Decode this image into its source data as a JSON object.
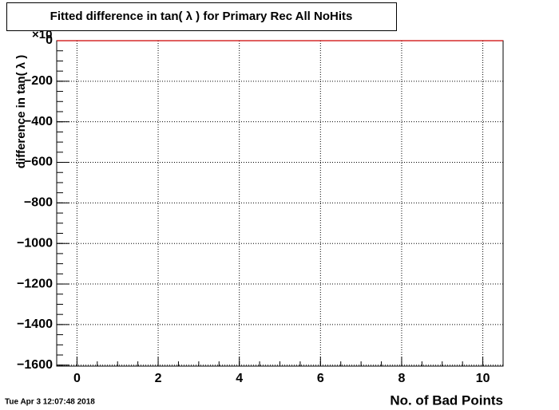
{
  "chart_data": {
    "type": "line",
    "title": "Fitted difference in tan( λ ) for Primary Rec All NoHits",
    "xlabel": "No. of Bad Points",
    "ylabel": "difference in tan( λ )",
    "exponent_label": "×10",
    "timestamp": "Tue Apr  3 12:07:48 2018",
    "x": [
      -0.5,
      10.5
    ],
    "series": [
      {
        "color": "#cc0000",
        "values": [
          0,
          0
        ]
      }
    ],
    "xlim": [
      -0.5,
      10.5
    ],
    "xticks": [
      0,
      2,
      4,
      6,
      8,
      10
    ],
    "ylim": [
      -1605,
      0
    ],
    "yticks": [
      0,
      {
        "value": -200,
        "label": "−200"
      },
      {
        "value": -400,
        "label": "−400"
      },
      {
        "value": -600,
        "label": "−600"
      },
      {
        "value": -800,
        "label": "−800"
      },
      {
        "value": -1000,
        "label": "−1000"
      },
      {
        "value": -1200,
        "label": "−1200"
      },
      {
        "value": -1400,
        "label": "−1400"
      },
      {
        "value": -1600,
        "label": "−1600"
      }
    ],
    "grid": true
  }
}
